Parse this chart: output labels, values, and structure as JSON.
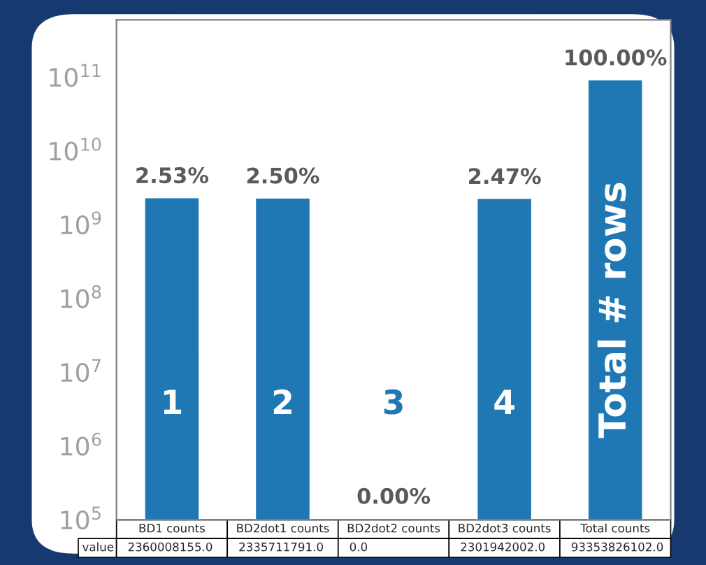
{
  "chart_data": {
    "type": "bar",
    "log": "y",
    "categories": [
      "BD1 counts",
      "BD2dot1 counts",
      "BD2dot2 counts",
      "BD2dot3 counts",
      "Total counts"
    ],
    "values": [
      2360008155.0,
      2335711791.0,
      null,
      2301942002.0,
      93353826102.0
    ],
    "value_labels": [
      "2360008155.0",
      "2335711791.0",
      "0.0",
      "2301942002.0",
      "93353826102.0"
    ],
    "color": "#1f77b4",
    "xlabel": "value",
    "ylim": [
      100000,
      600000000000
    ],
    "yticks": [
      {
        "value": 100000,
        "label": "10$^{5}$"
      },
      {
        "value": 1000000,
        "label": "10$^{6}$"
      },
      {
        "value": 10000000,
        "label": "10$^{7}$"
      },
      {
        "value": 100000000,
        "label": "10$^{8}$"
      },
      {
        "value": 1000000000,
        "label": "10$^{9}$"
      },
      {
        "value": 10000000000,
        "label": "10$^{10}$"
      },
      {
        "value": 100000000000,
        "label": "10$^{11}$"
      }
    ],
    "annotations": [
      {
        "text": "2.53%",
        "x": "BD1 counts",
        "y": 2360008155.0
      },
      {
        "text": "2.50%",
        "x": "BD2dot1 counts",
        "y": 2335711791.0
      },
      {
        "text": "2.47%",
        "x": "BD2dot3 counts",
        "y": 2301942002.0
      },
      {
        "text": "100.00%",
        "x": "Total counts",
        "y": 93353826102.0
      },
      "1",
      "2",
      "3",
      "4",
      "Total # rows",
      "0.00%"
    ]
  }
}
